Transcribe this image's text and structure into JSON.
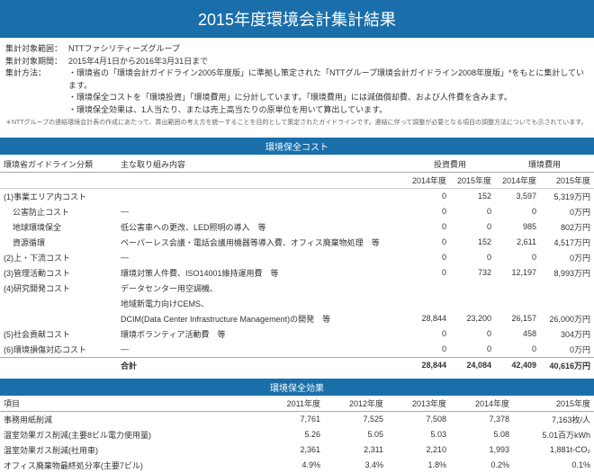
{
  "title": "2015年度環境会計集計結果",
  "meta": {
    "scope_label": "集計対象範囲：",
    "scope": "NTTファシリティーズグループ",
    "period_label": "集計対象期間：",
    "period": "2015年4月1日から2016年3月31日まで",
    "method_label": "集計方法：",
    "method_lines": [
      "・環境省の「環境会計ガイドライン2005年度版」に準拠し策定された「NTTグループ環境会計ガイドライン2008年度版」*をもとに集計しています。",
      "・環境保全コストを「環境投資」「環境費用」に分計しています。「環境費用」には減価償却費、および人件費を含みます。",
      "・環境保全効果は、1人当たり、または売上高当たりの原単位を用いて算出しています。"
    ],
    "note": "＊NTTグループの連結環境会計表の作成にあたって、算出範囲の考え方を統一することを目的として策定されたガイドラインです。連結に伴って調整が必要となる項目の調整方法についても示されています。"
  },
  "cost": {
    "section": "環境保全コスト",
    "head": {
      "c1": "環境省ガイドライン分類",
      "c2": "主な取り組み内容",
      "c3": "投資費用",
      "c4": "環境費用",
      "y1": "2014年度",
      "y2": "2015年度"
    },
    "rows": [
      {
        "cat": "(1)事業エリア内コスト",
        "act": "",
        "i14": "0",
        "i15": "152",
        "e14": "3,597",
        "e15": "5,319万円"
      },
      {
        "cat": "公害防止コスト",
        "act": "—",
        "i14": "0",
        "i15": "0",
        "e14": "0",
        "e15": "0万円",
        "indent": true
      },
      {
        "cat": "地球環境保全",
        "act": "低公害車への更改、LED照明の導入　等",
        "i14": "0",
        "i15": "0",
        "e14": "985",
        "e15": "802万円",
        "indent": true
      },
      {
        "cat": "資源循環",
        "act": "ペーパーレス会議・電話会議用機器等導入費、オフィス廃棄物処理　等",
        "i14": "0",
        "i15": "152",
        "e14": "2,611",
        "e15": "4,517万円",
        "indent": true
      },
      {
        "cat": "(2)上・下流コスト",
        "act": "—",
        "i14": "0",
        "i15": "0",
        "e14": "0",
        "e15": "0万円"
      },
      {
        "cat": "(3)管理活動コスト",
        "act": "環境対策人件費、ISO14001維持運用費　等",
        "i14": "0",
        "i15": "732",
        "e14": "12,197",
        "e15": "8,993万円"
      },
      {
        "cat": "(4)研究開発コスト",
        "act": "データセンター用空調機、",
        "i14": "",
        "i15": "",
        "e14": "",
        "e15": ""
      },
      {
        "cat": "",
        "act": "地域新電力向けCEMS、",
        "i14": "",
        "i15": "",
        "e14": "",
        "e15": ""
      },
      {
        "cat": "",
        "act": "DCIM(Data Center Infrastructure Management)の開発　等",
        "i14": "28,844",
        "i15": "23,200",
        "e14": "26,157",
        "e15": "26,000万円"
      },
      {
        "cat": "(5)社会貢献コスト",
        "act": "環境ボランティア活動費　等",
        "i14": "0",
        "i15": "0",
        "e14": "458",
        "e15": "304万円"
      },
      {
        "cat": "(6)環境損傷対応コスト",
        "act": "—",
        "i14": "0",
        "i15": "0",
        "e14": "0",
        "e15": "0万円"
      }
    ],
    "total": {
      "label": "合計",
      "i14": "28,844",
      "i15": "24,084",
      "e14": "42,409",
      "e15": "40,616万円"
    }
  },
  "effect": {
    "section": "環境保全効果",
    "head": {
      "item": "項目",
      "y11": "2011年度",
      "y12": "2012年度",
      "y13": "2013年度",
      "y14": "2014年度",
      "y15": "2015年度"
    },
    "rows": [
      {
        "item": "事務用紙削減",
        "v11": "7,761",
        "v12": "7,525",
        "v13": "7,508",
        "v14": "7,378",
        "v15": "7,163枚/人"
      },
      {
        "item": "温室効果ガス削減(主要8ビル電力使用量)",
        "v11": "5.26",
        "v12": "5.05",
        "v13": "5.03",
        "v14": "5.08",
        "v15": "5.01百万kWh"
      },
      {
        "item": "温室効果ガス削減(社用車)",
        "v11": "2,361",
        "v12": "2,311",
        "v13": "2,210",
        "v14": "1,993",
        "v15": "1,881t-CO₂"
      },
      {
        "item": "オフィス廃棄物最終処分率(主要7ビル)",
        "v11": "4.9%",
        "v12": "3.4%",
        "v13": "1.8%",
        "v14": "0.2%",
        "v15": "0.1%"
      }
    ]
  }
}
